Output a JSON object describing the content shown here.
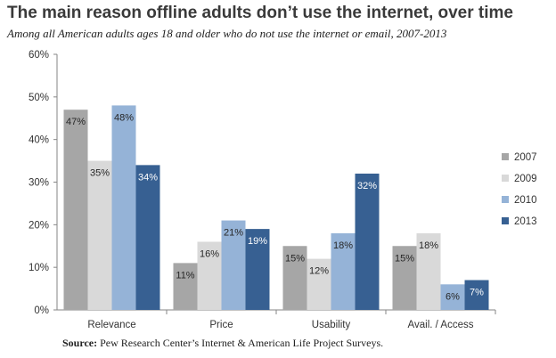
{
  "title": "The main reason offline adults don’t use the internet, over time",
  "subtitle": "Among all American adults ages 18 and older who do not use the internet or email, 2007-2013",
  "source_label": "Source:",
  "source_text": " Pew Research Center’s Internet & American Life Project Surveys.",
  "chart_data": {
    "type": "bar",
    "categories": [
      "Relevance",
      "Price",
      "Usability",
      "Avail. / Access"
    ],
    "series": [
      {
        "name": "2007",
        "color": "#a6a6a6",
        "values": [
          47,
          11,
          15,
          15
        ]
      },
      {
        "name": "2009",
        "color": "#d9d9d9",
        "values": [
          35,
          16,
          12,
          18
        ]
      },
      {
        "name": "2010",
        "color": "#95b3d7",
        "values": [
          48,
          21,
          18,
          6
        ]
      },
      {
        "name": "2013",
        "color": "#376092",
        "values": [
          34,
          19,
          32,
          7
        ]
      }
    ],
    "ylim": [
      0,
      60
    ],
    "yticks": [
      "0%",
      "10%",
      "20%",
      "30%",
      "40%",
      "50%",
      "60%"
    ],
    "value_suffix": "%",
    "grid": false,
    "legend_position": "right"
  }
}
